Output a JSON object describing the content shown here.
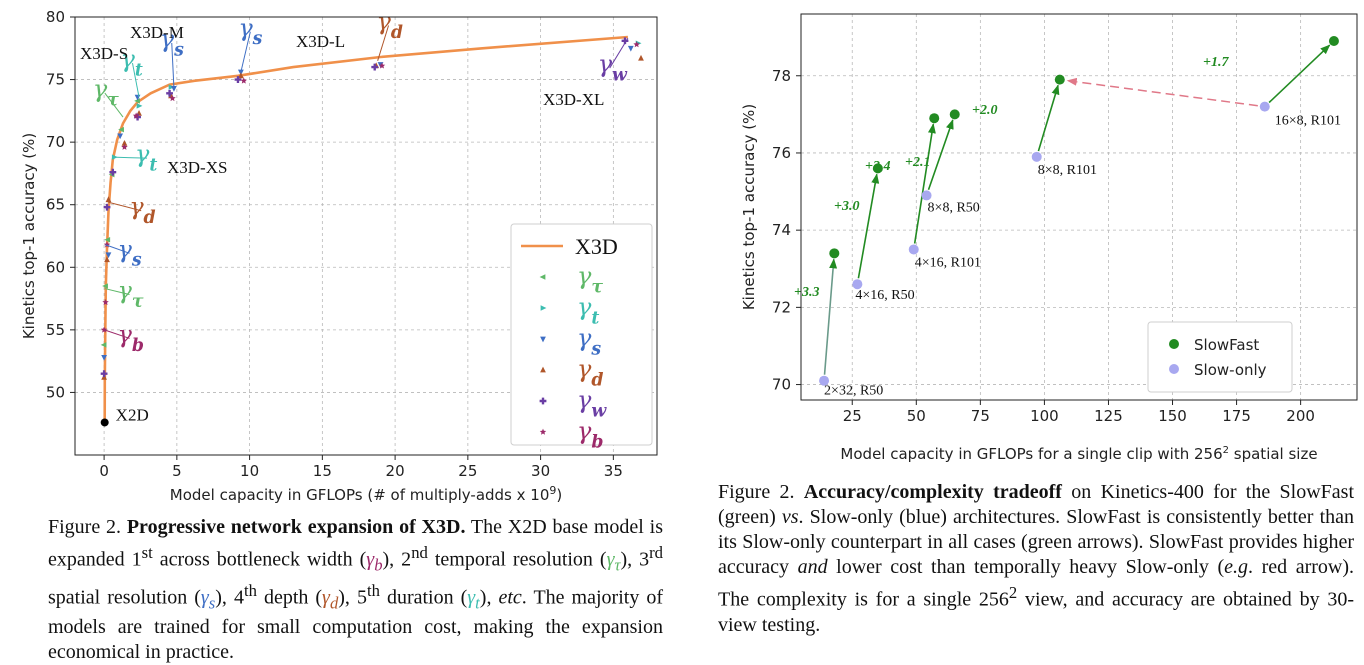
{
  "captions": {
    "left": {
      "label": "Figure 2.",
      "title": "Progressive network expansion of X3D.",
      "text1": " The X2D base model is expanded 1",
      "sup1": "st",
      "text2": " across bottleneck width (",
      "gb": "γ",
      "gb_sub": "b",
      "text3": "), 2",
      "sup2": "nd",
      "text4": " temporal resolution (",
      "gt": "γ",
      "gt_sub": "τ",
      "text5": "), 3",
      "sup3": "rd",
      "text6": " spatial resolution (",
      "gs": "γ",
      "gs_sub": "s",
      "text7": "), 4",
      "sup4": "th",
      "text8": " depth (",
      "gd": "γ",
      "gd_sub": "d",
      "text9": "), 5",
      "sup5": "th",
      "text10": " duration (",
      "gtt": "γ",
      "gtt_sub": "t",
      "text11": "), ",
      "etc": "etc",
      "text12": ". The majority of models are trained for small computation cost, making the expansion economical in practice."
    },
    "right": {
      "label": "Figure 2.",
      "title": "Accuracy/complexity tradeoff",
      "text1": " on Kinetics-400 for the SlowFast (green) ",
      "vs": "vs",
      "text2": ". Slow-only (blue) architectures. SlowFast is consistently better than its Slow-only counterpart in all cases (green arrows). SlowFast provides higher accuracy ",
      "and": "and",
      "text3": " lower cost than temporally heavy Slow-only (",
      "eg": "e.g",
      "text4": ". red arrow). The complexity is for a single 256",
      "sup": "2",
      "text5": " view, and accuracy are obtained by 30-view testing."
    }
  },
  "chart_data": [
    {
      "type": "line",
      "xlabel": "Model capacity in GFLOPs (# of multiply-adds x 10",
      "xlabel_sup": "9",
      "xlabel_end": ")",
      "ylabel": "Kinetics top-1 accuracy (%)",
      "xlim": [
        -2,
        38
      ],
      "ylim": [
        45,
        80
      ],
      "xticks": [
        0,
        5,
        10,
        15,
        20,
        25,
        30,
        35
      ],
      "yticks": [
        50,
        55,
        60,
        65,
        70,
        75,
        80
      ],
      "grid": true,
      "legend_position": "lower-right",
      "colors": {
        "line": "#f0904a",
        "tau": "#5fb868",
        "t": "#3cbdb0",
        "s": "#3e6ec4",
        "d": "#b0562a",
        "w": "#6a3ea4",
        "b": "#9c2a6a",
        "base": "#000000"
      },
      "series": [
        {
          "name": "X3D",
          "x": [
            0.04,
            0.05,
            0.08,
            0.12,
            0.2,
            0.3,
            0.45,
            0.6,
            0.9,
            1.3,
            1.8,
            2.3,
            3.2,
            4.5,
            6.2,
            9.2,
            13,
            19,
            26,
            36
          ],
          "y": [
            47.6,
            51,
            55,
            58.5,
            61.5,
            64.5,
            66.8,
            68.6,
            70.2,
            71.5,
            72.5,
            73.2,
            73.9,
            74.6,
            74.9,
            75.3,
            76.0,
            76.8,
            77.5,
            78.4
          ]
        }
      ],
      "point_groups": [
        {
          "name": "γτ",
          "marker": "tri-left",
          "points": [
            [
              0.0,
              53.8
            ],
            [
              0.1,
              58.5
            ],
            [
              0.25,
              62.2
            ],
            [
              0.55,
              67.4
            ],
            [
              1.2,
              71.0
            ],
            [
              2.3,
              73.3
            ]
          ]
        },
        {
          "name": "γt",
          "marker": "tri-right",
          "points": [
            [
              0.7,
              68.8
            ],
            [
              2.4,
              72.9
            ],
            [
              4.6,
              74.4
            ],
            [
              36.7,
              77.9
            ]
          ]
        },
        {
          "name": "γs",
          "marker": "tri-down",
          "points": [
            [
              0.0,
              52.8
            ],
            [
              0.3,
              61.0
            ],
            [
              1.1,
              70.5
            ],
            [
              2.3,
              73.6
            ],
            [
              4.8,
              74.3
            ],
            [
              9.4,
              75.6
            ],
            [
              19.0,
              76.2
            ],
            [
              36.2,
              77.5
            ]
          ]
        },
        {
          "name": "γd",
          "marker": "tri-up",
          "points": [
            [
              0.0,
              51.2
            ],
            [
              0.2,
              60.6
            ],
            [
              0.3,
              65.4
            ],
            [
              1.4,
              69.9
            ],
            [
              2.4,
              72.3
            ],
            [
              4.6,
              73.7
            ],
            [
              9.4,
              75.3
            ],
            [
              18.7,
              76.1
            ],
            [
              36.9,
              76.7
            ]
          ]
        },
        {
          "name": "γw",
          "marker": "plus",
          "points": [
            [
              0.0,
              51.5
            ],
            [
              0.2,
              64.8
            ],
            [
              0.6,
              67.6
            ],
            [
              2.3,
              72.0
            ],
            [
              4.5,
              73.9
            ],
            [
              9.2,
              75.0
            ],
            [
              18.6,
              76.0
            ],
            [
              35.8,
              78.1
            ]
          ]
        },
        {
          "name": "γb",
          "marker": "star",
          "points": [
            [
              0.0,
              55.0
            ],
            [
              0.1,
              57.2
            ],
            [
              0.2,
              61.8
            ],
            [
              1.4,
              69.6
            ],
            [
              2.2,
              72.1
            ],
            [
              4.7,
              73.5
            ],
            [
              9.6,
              74.9
            ],
            [
              19.1,
              76.1
            ],
            [
              36.6,
              77.8
            ]
          ]
        }
      ],
      "base_point": {
        "label": "X2D",
        "x": 0.04,
        "y": 47.6
      },
      "text_labels": [
        "X3D-XS",
        "X3D-S",
        "X3D-M",
        "X3D-L",
        "X3D-XL"
      ],
      "gamma_symbol": "γ",
      "legend": [
        {
          "label": "X3D",
          "kind": "line"
        },
        {
          "sym": "γ",
          "sub": "τ",
          "kind": "tau"
        },
        {
          "sym": "γ",
          "sub": "t",
          "kind": "t"
        },
        {
          "sym": "γ",
          "sub": "s",
          "kind": "s"
        },
        {
          "sym": "γ",
          "sub": "d",
          "kind": "d"
        },
        {
          "sym": "γ",
          "sub": "w",
          "kind": "w"
        },
        {
          "sym": "γ",
          "sub": "b",
          "kind": "b"
        }
      ],
      "annotations": [
        {
          "sym": "γ",
          "sub": "t",
          "kind": "t",
          "at": [
            2.4,
            73.6
          ],
          "label_at": [
            1.4,
            76.0
          ]
        },
        {
          "sym": "γ",
          "sub": "τ",
          "kind": "tau",
          "at": [
            1.3,
            72.0
          ],
          "label_at": [
            -0.5,
            73.6
          ]
        },
        {
          "sym": "γ",
          "sub": "s",
          "kind": "s",
          "at": [
            4.8,
            74.3
          ],
          "label_at": [
            4.1,
            77.6
          ]
        },
        {
          "sym": "γ",
          "sub": "s",
          "kind": "s",
          "at": [
            9.4,
            75.6
          ],
          "label_at": [
            9.5,
            78.5
          ]
        },
        {
          "sym": "γ",
          "sub": "d",
          "kind": "d",
          "at": [
            18.8,
            76.5
          ],
          "label_at": [
            19.0,
            79.0
          ]
        },
        {
          "sym": "γ",
          "sub": "w",
          "kind": "w",
          "at": [
            36.0,
            78.3
          ],
          "label_at": [
            34.2,
            75.6
          ]
        },
        {
          "sym": "γ",
          "sub": "t",
          "kind": "t",
          "at": [
            0.6,
            68.8
          ],
          "label_at": [
            2.4,
            68.4
          ]
        },
        {
          "sym": "γ",
          "sub": "d",
          "kind": "d",
          "at": [
            0.3,
            65.2
          ],
          "label_at": [
            2.0,
            64.2
          ]
        },
        {
          "sym": "γ",
          "sub": "s",
          "kind": "s",
          "at": [
            0.1,
            61.8
          ],
          "label_at": [
            1.2,
            60.8
          ]
        },
        {
          "sym": "γ",
          "sub": "τ",
          "kind": "tau",
          "at": [
            0.05,
            58.3
          ],
          "label_at": [
            1.2,
            57.5
          ]
        },
        {
          "sym": "γ",
          "sub": "b",
          "kind": "b",
          "at": [
            0.02,
            55.0
          ],
          "label_at": [
            1.2,
            54.0
          ]
        }
      ]
    },
    {
      "type": "scatter",
      "xlabel": "Model capacity in GFLOPs for a single clip with 256",
      "xlabel_sup": "2",
      "xlabel_end": " spatial size",
      "ylabel": "Kinetics top-1 accuracy (%)",
      "xlim": [
        5,
        222
      ],
      "ylim": [
        69.6,
        79.6
      ],
      "xticks": [
        25,
        50,
        75,
        100,
        125,
        150,
        175,
        200
      ],
      "yticks": [
        70,
        72,
        74,
        76,
        78
      ],
      "grid": true,
      "legend_position": "lower-right",
      "colors": {
        "slowfast": "#228b22",
        "slowonly": "#a8a8f0",
        "red_arrow": "#e07888"
      },
      "series": [
        {
          "name": "SlowFast",
          "color": "#228b22",
          "points": [
            [
              18,
              73.4
            ],
            [
              35,
              75.6
            ],
            [
              57,
              76.9
            ],
            [
              65,
              77.0
            ],
            [
              106,
              77.9
            ],
            [
              213,
              78.9
            ]
          ]
        },
        {
          "name": "Slow-only",
          "color": "#a8a8f0",
          "points": [
            [
              14,
              70.1
            ],
            [
              27,
              72.6
            ],
            [
              49,
              73.5
            ],
            [
              54,
              74.9
            ],
            [
              97,
              75.9
            ],
            [
              186,
              77.2
            ]
          ]
        }
      ],
      "point_labels": [
        "2×32, R50",
        "4×16, R50",
        "4×16, R101",
        "8×8, R50",
        "8×8, R101",
        "16×8, R101"
      ],
      "gains": [
        "+3.3",
        "+3.0",
        "+3.4",
        "+2.1",
        "+2.0",
        "+1.7"
      ]
    }
  ]
}
